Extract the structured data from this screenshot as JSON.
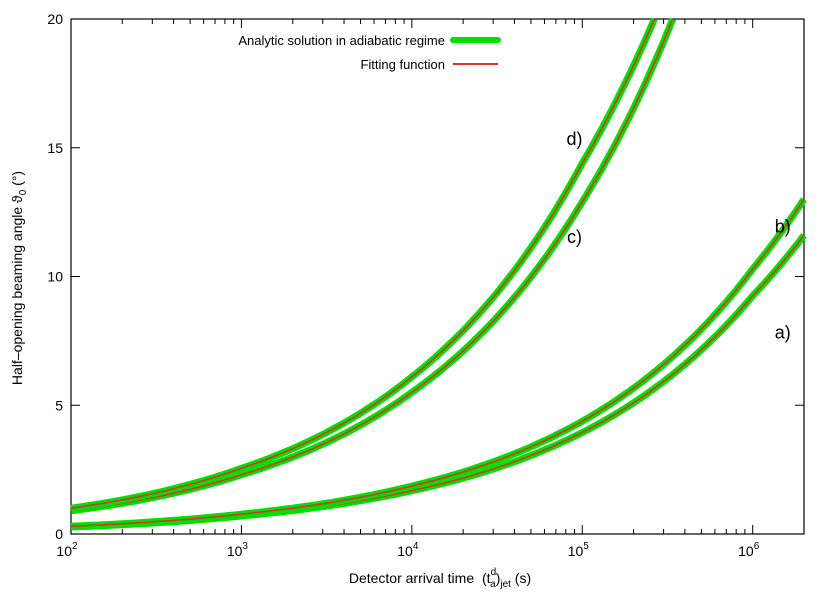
{
  "chart_data": {
    "type": "line",
    "xlabel": "Detector arrival time",
    "xlabel_paren": "(t",
    "xlabel_sup": "d",
    "xlabel_sub1": "a",
    "xlabel_close": ")",
    "xlabel_sub2": "jet",
    "xlabel_unit": " (s)",
    "ylabel": "Half–opening beaming angle ϑ",
    "ylabel_sub": "0",
    "ylabel_unit": " (°)",
    "x_scale": "log",
    "xlim": [
      100,
      2000000
    ],
    "ylim": [
      0,
      20
    ],
    "x_ticks": [
      {
        "base": "10",
        "exp": "2"
      },
      {
        "base": "10",
        "exp": "3"
      },
      {
        "base": "10",
        "exp": "4"
      },
      {
        "base": "10",
        "exp": "5"
      },
      {
        "base": "10",
        "exp": "6"
      }
    ],
    "y_ticks": [
      "0",
      "5",
      "10",
      "15",
      "20"
    ],
    "legend_position": "top-center",
    "legend": [
      {
        "name": "Analytic solution in adiabatic regime",
        "color": "#00e000"
      },
      {
        "name": "Fitting function",
        "color": "#e03030"
      }
    ],
    "series": [
      {
        "label": "a)",
        "x": [
          100,
          1000,
          10000,
          100000,
          1000000,
          2000000
        ],
        "y": [
          0.27,
          0.7,
          1.68,
          3.94,
          9.25,
          11.6
        ]
      },
      {
        "label": "b)",
        "x": [
          100,
          1000,
          10000,
          100000,
          1000000,
          2000000
        ],
        "y": [
          0.3,
          0.77,
          1.86,
          4.38,
          10.29,
          13.0
        ]
      },
      {
        "label": "c)",
        "x": [
          100,
          1000,
          10000,
          100000,
          340000
        ],
        "y": [
          0.9,
          2.3,
          5.5,
          12.9,
          20.0
        ]
      },
      {
        "label": "d)",
        "x": [
          100,
          1000,
          10000,
          100000,
          265000
        ],
        "y": [
          1.0,
          2.55,
          6.1,
          14.4,
          20.0
        ]
      }
    ],
    "colors": {
      "analytic": "#00e000",
      "fit": "#e03030",
      "axis": "#000000",
      "grid": "#555555"
    }
  }
}
